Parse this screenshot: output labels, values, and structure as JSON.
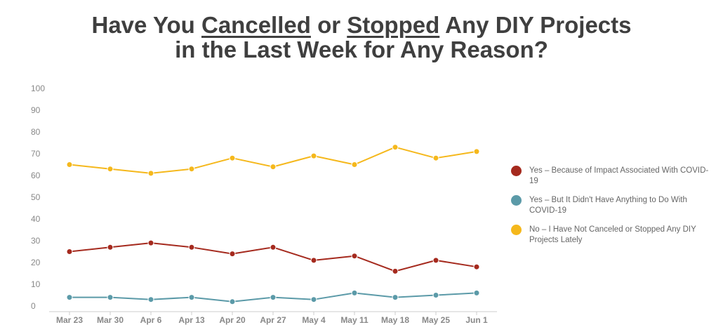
{
  "title": {
    "line1_pre": "Have You ",
    "line1_u1": "Cancelled",
    "line1_mid": " or ",
    "line1_u2": "Stopped",
    "line1_post": " Any DIY Projects",
    "line2": "in the Last Week for Any Reason?"
  },
  "chart_data": {
    "type": "line",
    "title": "Have You Cancelled or Stopped Any DIY Projects in the Last Week for Any Reason?",
    "categories": [
      "Mar 23",
      "Mar 30",
      "Apr 6",
      "Apr 13",
      "Apr 20",
      "Apr 27",
      "May 4",
      "May 11",
      "May 18",
      "May 25",
      "Jun 1"
    ],
    "ylim": [
      0,
      100
    ],
    "yticks": [
      "0",
      "10",
      "20",
      "30",
      "40",
      "50",
      "60",
      "70",
      "80",
      "90",
      "100"
    ],
    "xlabel": "",
    "ylabel": "",
    "grid": false,
    "legend_position": "right",
    "series": [
      {
        "name": "Yes – Because of Impact Associated With COVID-19",
        "color": "#a52a1e",
        "values": [
          25,
          27,
          29,
          27,
          24,
          27,
          21,
          23,
          16,
          21,
          18
        ]
      },
      {
        "name": "Yes – But It Didn't Have Anything to Do With COVID-19",
        "color": "#5b9aa8",
        "values": [
          4,
          4,
          3,
          4,
          2,
          4,
          3,
          6,
          4,
          5,
          6
        ]
      },
      {
        "name": "No – I Have Not Canceled or Stopped Any DIY Projects Lately",
        "color": "#f5b81c",
        "values": [
          65,
          63,
          61,
          63,
          68,
          64,
          69,
          65,
          73,
          68,
          71
        ]
      }
    ]
  }
}
